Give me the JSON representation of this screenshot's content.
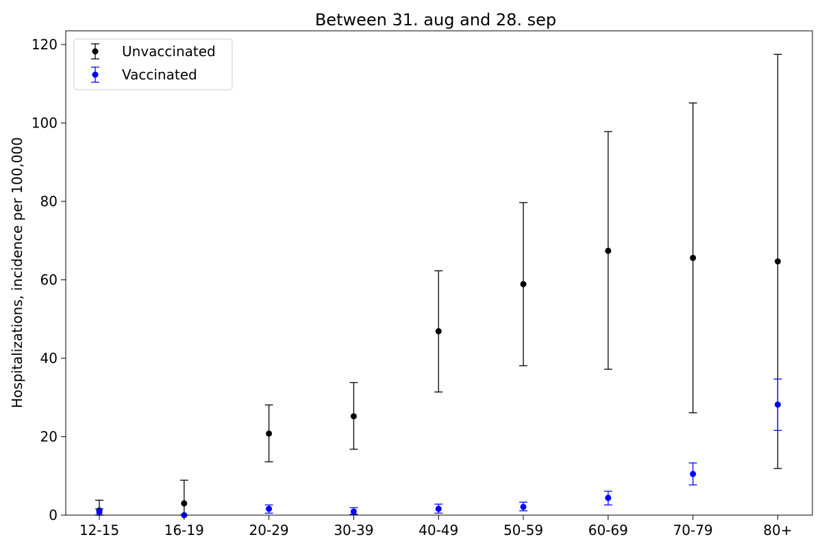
{
  "chart_data": {
    "type": "scatter",
    "title": "Between 31. aug and 28. sep",
    "xlabel": "",
    "ylabel": "Hospitalizations, incidence per 100,000",
    "categories": [
      "12-15",
      "16-19",
      "20-29",
      "30-39",
      "40-49",
      "50-59",
      "60-69",
      "70-79",
      "80+"
    ],
    "ylim": [
      0,
      123.5
    ],
    "yticks": [
      0,
      20,
      40,
      60,
      80,
      100,
      120
    ],
    "ytick_labels": [
      "0",
      "20",
      "40",
      "60",
      "80",
      "100",
      "120"
    ],
    "grid": false,
    "legend_position": "top-left",
    "series": [
      {
        "name": "Unvaccinated",
        "color": "#000000",
        "values": [
          1.2,
          3.0,
          20.8,
          25.2,
          46.9,
          58.9,
          67.4,
          65.6,
          64.7
        ],
        "lower": [
          0.0,
          0.0,
          13.6,
          16.8,
          31.4,
          38.1,
          37.2,
          26.1,
          11.9
        ],
        "upper": [
          3.8,
          8.9,
          28.1,
          33.8,
          62.3,
          79.7,
          97.8,
          105.1,
          117.5
        ]
      },
      {
        "name": "Vaccinated",
        "color": "#0000ff",
        "values": [
          0.7,
          0.0,
          1.6,
          0.9,
          1.6,
          2.1,
          4.4,
          10.5,
          28.2
        ],
        "lower": [
          0.0,
          0.0,
          0.5,
          0.2,
          0.5,
          1.1,
          2.6,
          7.7,
          21.6
        ],
        "upper": [
          1.6,
          0.0,
          2.6,
          1.9,
          2.8,
          3.3,
          6.1,
          13.3,
          34.7
        ]
      }
    ]
  }
}
